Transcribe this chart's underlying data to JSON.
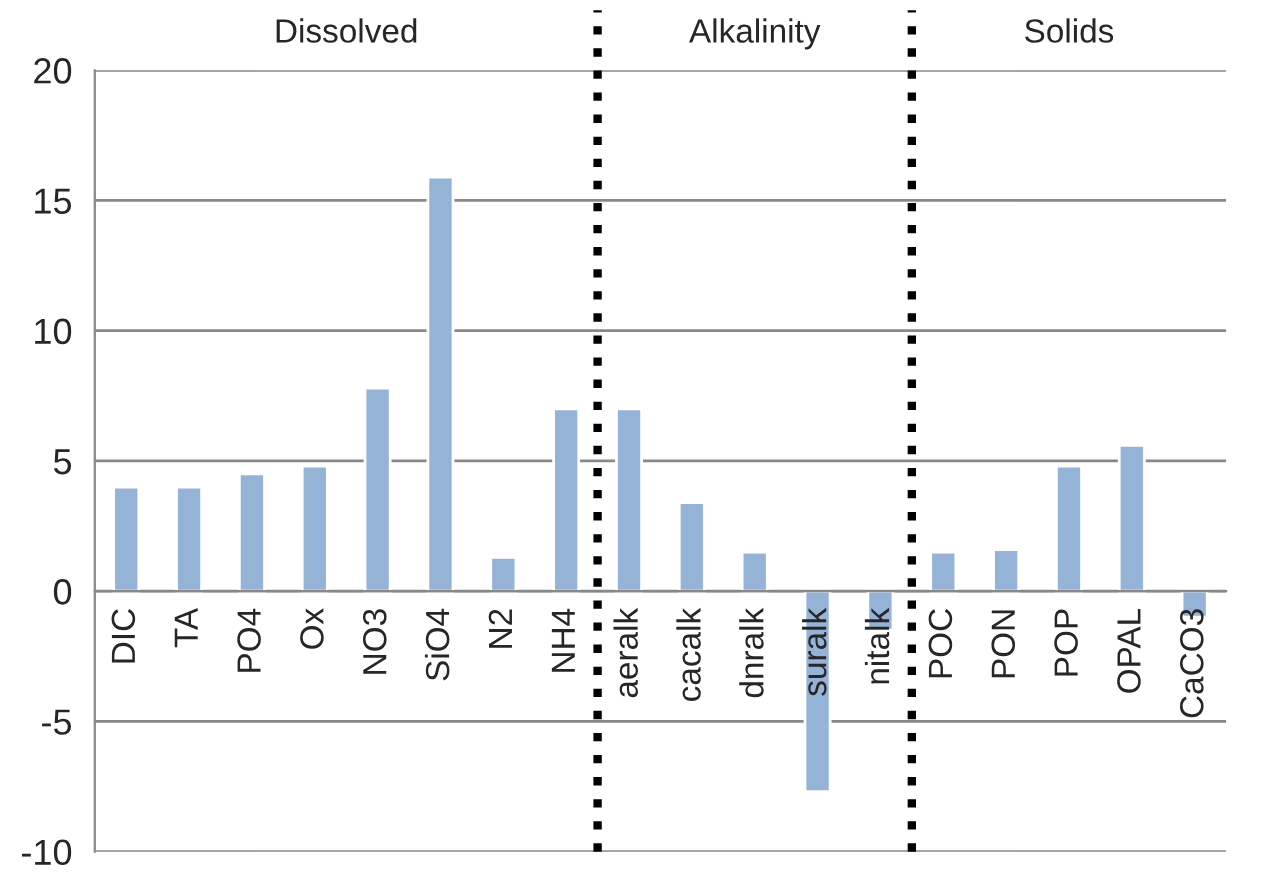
{
  "chart_data": {
    "type": "bar",
    "categories": [
      "DIC",
      "TA",
      "PO4",
      "Ox",
      "NO3",
      "SiO4",
      "N2",
      "NH4",
      "aeralk",
      "cacalk",
      "dnralk",
      "suralk",
      "nitalk",
      "POC",
      "PON",
      "POP",
      "OPAL",
      "CaCO3"
    ],
    "values": [
      4.0,
      4.0,
      4.5,
      4.8,
      7.8,
      15.9,
      1.3,
      7.0,
      7.0,
      3.4,
      1.5,
      -7.7,
      -1.5,
      1.5,
      1.6,
      4.8,
      5.6,
      -1.0
    ],
    "color": "#95b3d7",
    "ylim": [
      -10,
      20
    ],
    "yticks": [
      -10,
      -5,
      0,
      5,
      10,
      15,
      20
    ],
    "grid": "y",
    "annotations": [
      "Dissolved",
      "Alkalinity",
      "Solids"
    ]
  }
}
